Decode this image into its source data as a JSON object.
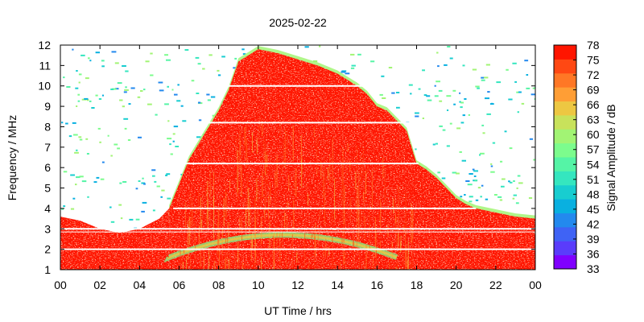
{
  "chart_data": {
    "type": "heatmap",
    "title": "2025-02-22",
    "xlabel": "UT Time / hrs",
    "ylabel": "Frequency / MHz",
    "colorbar_label": "Signal Amplitude / dB",
    "xlim": [
      0,
      24
    ],
    "ylim": [
      1,
      12
    ],
    "x_ticks": [
      "00",
      "02",
      "04",
      "06",
      "08",
      "10",
      "12",
      "14",
      "16",
      "18",
      "20",
      "22",
      "00"
    ],
    "y_ticks": [
      "1",
      "2",
      "3",
      "4",
      "5",
      "6",
      "7",
      "8",
      "9",
      "10",
      "11",
      "12"
    ],
    "color_scale": {
      "range": [
        33,
        78
      ],
      "ticks": [
        "33",
        "36",
        "39",
        "42",
        "45",
        "48",
        "51",
        "54",
        "57",
        "60",
        "63",
        "66",
        "69",
        "72",
        "75",
        "78"
      ],
      "colors": [
        "#8000ff",
        "#5a3cfb",
        "#3f63f5",
        "#2389ee",
        "#09b0e0",
        "#18cdd0",
        "#35e6bf",
        "#55f4a6",
        "#7cfc8d",
        "#a2f474",
        "#c8e25b",
        "#edc742",
        "#ff9e35",
        "#ff7725",
        "#ff4813",
        "#ff1500"
      ]
    },
    "red_region_upper_frequency_mhz": {
      "x": [
        5.5,
        6.0,
        6.5,
        7.0,
        7.5,
        8.0,
        8.5,
        9.0,
        9.5,
        10.0,
        11.0,
        12.0,
        13.0,
        14.0,
        15.0,
        15.5,
        16.0,
        16.5,
        17.0,
        17.5,
        18.0,
        18.5,
        19.0,
        19.5,
        20.0,
        20.5,
        21.0,
        22.0,
        23.0,
        24.0
      ],
      "y": [
        4.0,
        5.2,
        6.4,
        7.2,
        8.0,
        8.8,
        9.8,
        11.2,
        11.5,
        11.8,
        11.6,
        11.3,
        11.0,
        10.6,
        10.0,
        9.6,
        9.0,
        8.8,
        8.3,
        7.8,
        6.2,
        5.9,
        5.5,
        5.0,
        4.5,
        4.2,
        4.0,
        3.8,
        3.6,
        3.5
      ]
    },
    "night_band_upper_frequency_mhz": {
      "x": [
        0.0,
        1.0,
        2.0,
        3.0,
        4.0,
        5.0,
        5.5
      ],
      "y": [
        3.6,
        3.4,
        3.0,
        2.8,
        3.0,
        3.5,
        4.0
      ]
    }
  }
}
